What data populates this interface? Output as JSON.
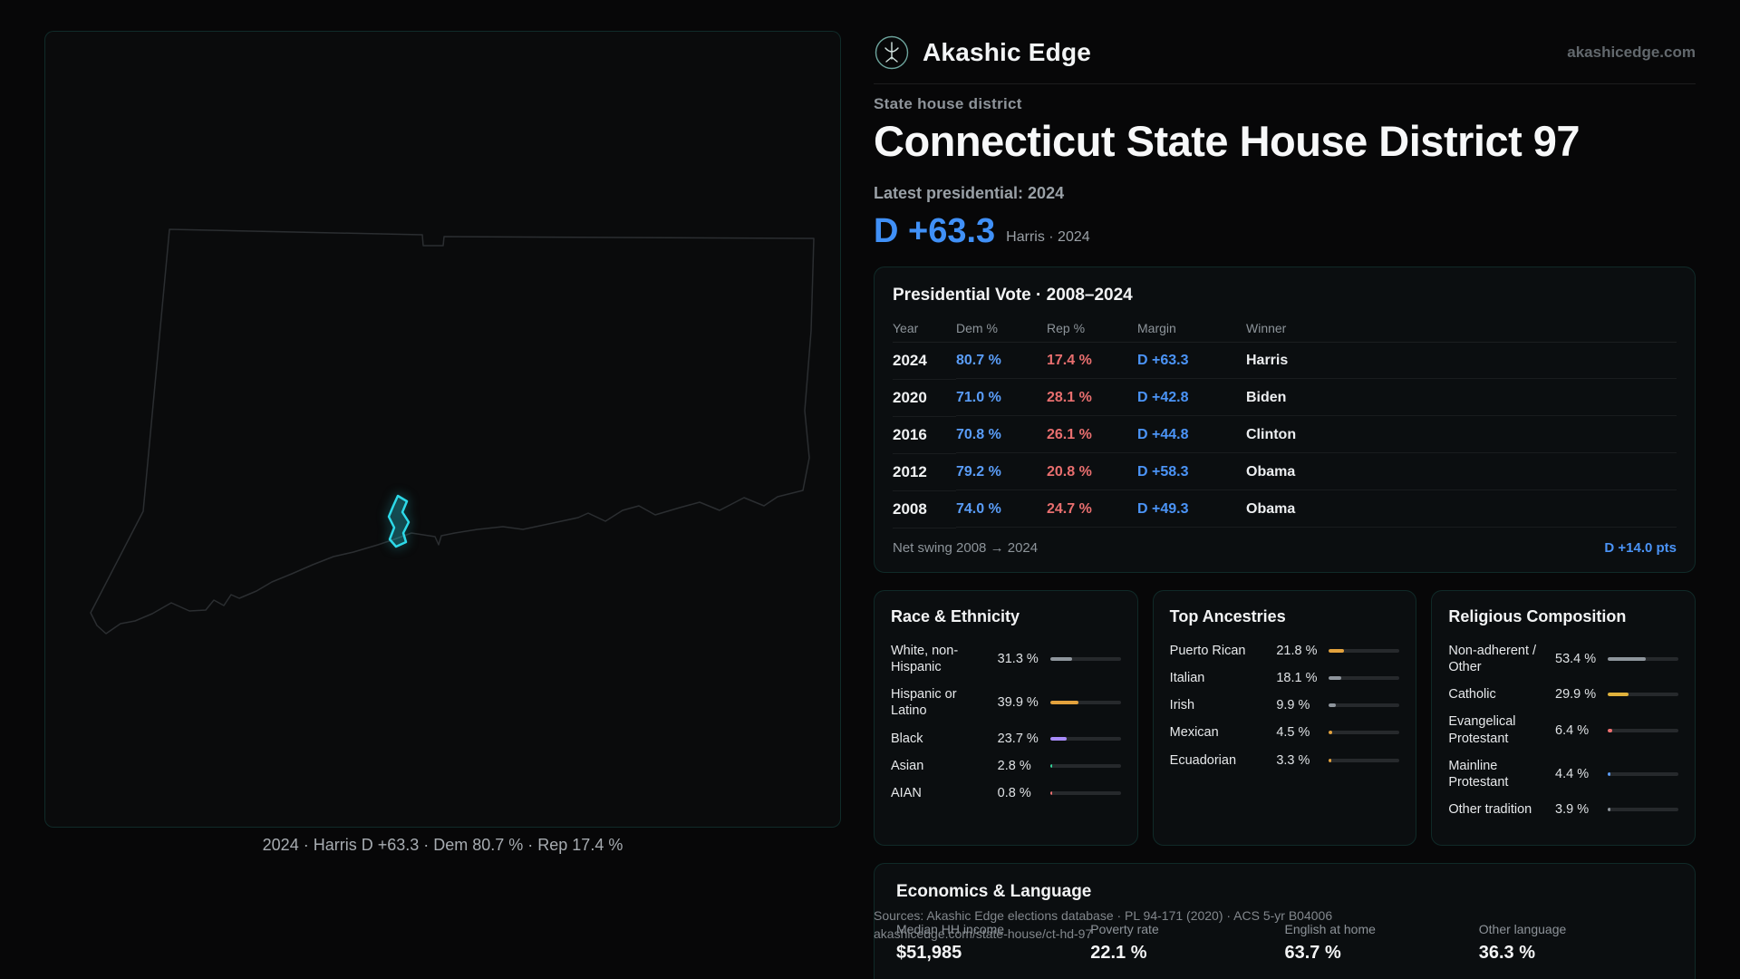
{
  "header": {
    "brand": "Akashic Edge",
    "site": "akashicedge.com"
  },
  "hero": {
    "kicker": "State house district",
    "title": "Connecticut State House District 97",
    "latest_label": "Latest presidential: 2024",
    "margin": "D +63.3",
    "margin_caption": "Harris · 2024"
  },
  "map": {
    "caption": "2024 · Harris D +63.3 · Dem 80.7 % · Rep 17.4 %",
    "district_color": "#2dd9e8",
    "outline_color": "#2b2e31"
  },
  "presidential": {
    "title": "Presidential Vote · 2008–2024",
    "columns": [
      "Year",
      "Dem %",
      "Rep %",
      "Margin",
      "Winner"
    ],
    "rows": [
      {
        "year": "2024",
        "dem": "80.7 %",
        "rep": "17.4 %",
        "margin": "D +63.3",
        "winner": "Harris"
      },
      {
        "year": "2020",
        "dem": "71.0 %",
        "rep": "28.1 %",
        "margin": "D +42.8",
        "winner": "Biden"
      },
      {
        "year": "2016",
        "dem": "70.8 %",
        "rep": "26.1 %",
        "margin": "D +44.8",
        "winner": "Clinton"
      },
      {
        "year": "2012",
        "dem": "79.2 %",
        "rep": "20.8 %",
        "margin": "D +58.3",
        "winner": "Obama"
      },
      {
        "year": "2008",
        "dem": "74.0 %",
        "rep": "24.7 %",
        "margin": "D +49.3",
        "winner": "Obama"
      }
    ],
    "net_swing_label": "Net swing 2008 → 2024",
    "net_swing_value": "D +14.0 pts"
  },
  "race": {
    "title": "Race & Ethnicity",
    "rows": [
      {
        "label": "White, non-Hispanic",
        "value": "31.3 %",
        "pct": 31.3,
        "color": "#8e959c"
      },
      {
        "label": "Hispanic or Latino",
        "value": "39.9 %",
        "pct": 39.9,
        "color": "#e3a23d"
      },
      {
        "label": "Black",
        "value": "23.7 %",
        "pct": 23.7,
        "color": "#a78bfa"
      },
      {
        "label": "Asian",
        "value": "2.8 %",
        "pct": 2.8,
        "color": "#34d399"
      },
      {
        "label": "AIAN",
        "value": "0.8 %",
        "pct": 0.8,
        "color": "#ef7070"
      }
    ]
  },
  "ancestries": {
    "title": "Top Ancestries",
    "rows": [
      {
        "label": "Puerto Rican",
        "value": "21.8 %",
        "pct": 21.8,
        "color": "#e3a23d"
      },
      {
        "label": "Italian",
        "value": "18.1 %",
        "pct": 18.1,
        "color": "#8e959c"
      },
      {
        "label": "Irish",
        "value": "9.9 %",
        "pct": 9.9,
        "color": "#8e959c"
      },
      {
        "label": "Mexican",
        "value": "4.5 %",
        "pct": 4.5,
        "color": "#e3a23d"
      },
      {
        "label": "Ecuadorian",
        "value": "3.3 %",
        "pct": 3.3,
        "color": "#e3a23d"
      }
    ]
  },
  "religion": {
    "title": "Religious Composition",
    "rows": [
      {
        "label": "Non-adherent / Other",
        "value": "53.4 %",
        "pct": 53.4,
        "color": "#8e959c"
      },
      {
        "label": "Catholic",
        "value": "29.9 %",
        "pct": 29.9,
        "color": "#e0b23c"
      },
      {
        "label": "Evangelical Protestant",
        "value": "6.4 %",
        "pct": 6.4,
        "color": "#ef7070"
      },
      {
        "label": "Mainline Protestant",
        "value": "4.4 %",
        "pct": 4.4,
        "color": "#5b9cf6"
      },
      {
        "label": "Other tradition",
        "value": "3.9 %",
        "pct": 3.9,
        "color": "#8e959c"
      }
    ]
  },
  "economics": {
    "title": "Economics & Language",
    "stats": [
      {
        "label": "Median HH income",
        "value": "$51,985"
      },
      {
        "label": "Poverty rate",
        "value": "22.1 %"
      },
      {
        "label": "English at home",
        "value": "63.7 %"
      },
      {
        "label": "Other language",
        "value": "36.3 %"
      }
    ]
  },
  "footer": {
    "sources": "Sources: Akashic Edge elections database · PL 94-171 (2020) · ACS 5-yr B04006",
    "permalink": "akashicedge.com/state-house/ct-hd-97"
  }
}
